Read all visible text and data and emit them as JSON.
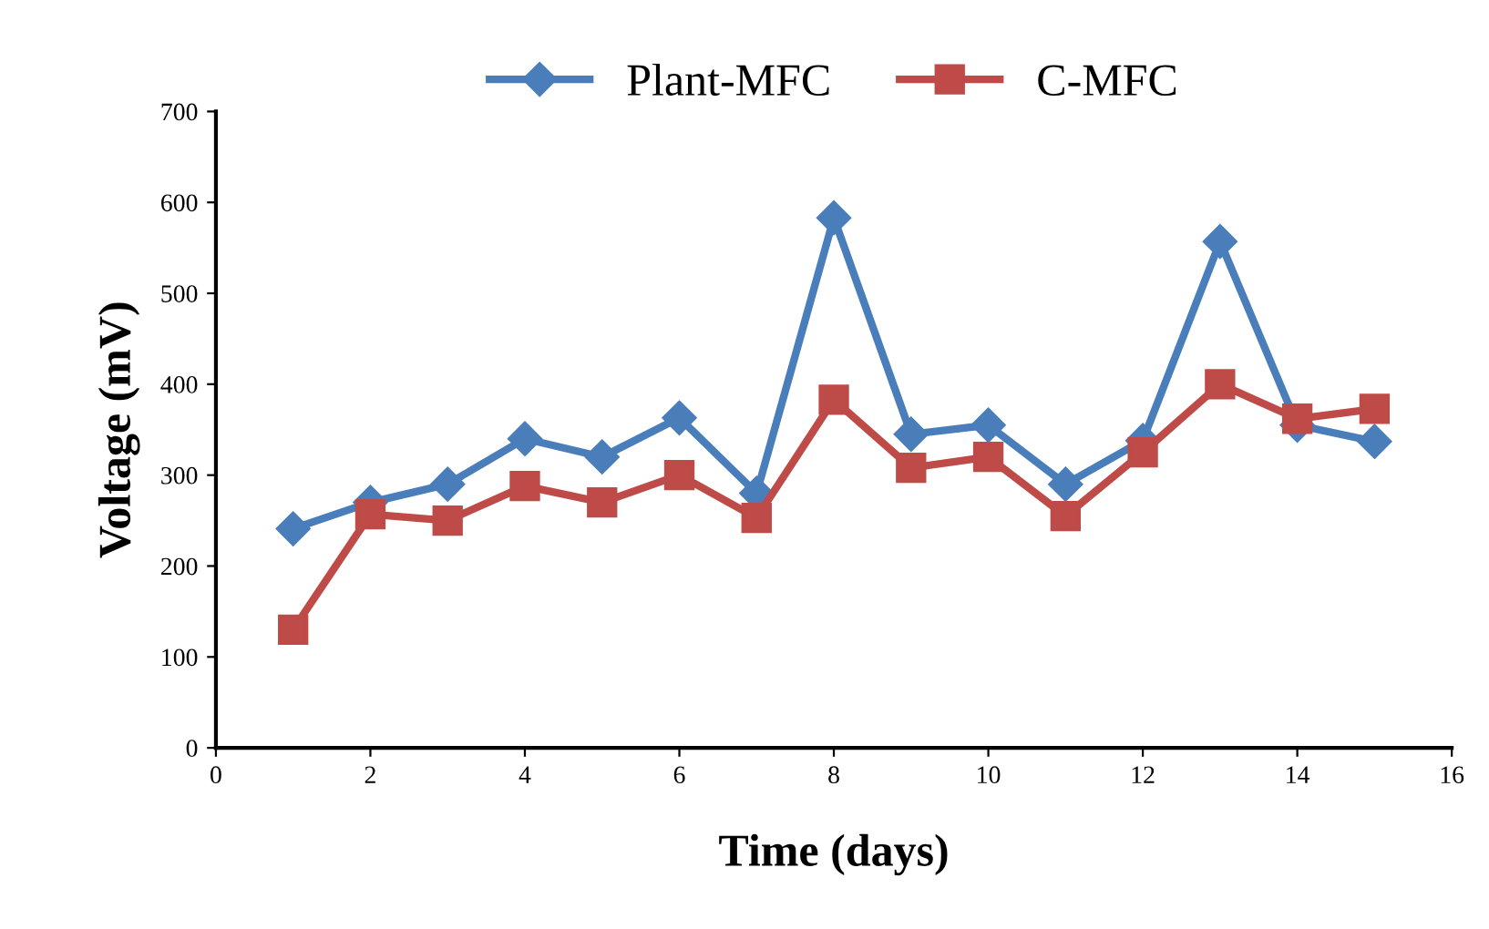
{
  "chart_data": {
    "type": "line",
    "xlabel": "Time (days)",
    "ylabel": "Voltage (mV)",
    "x": [
      1,
      2,
      3,
      4,
      5,
      6,
      7,
      8,
      9,
      10,
      11,
      12,
      13,
      14,
      15
    ],
    "series": [
      {
        "name": "Plant-MFC",
        "color": "#4a7ebb",
        "marker": "diamond",
        "values": [
          241,
          270,
          290,
          340,
          320,
          363,
          280,
          583,
          345,
          355,
          290,
          338,
          557,
          355,
          337
        ]
      },
      {
        "name": "C-MFC",
        "color": "#be4b48",
        "marker": "square",
        "values": [
          130,
          257,
          250,
          288,
          270,
          300,
          253,
          383,
          308,
          320,
          255,
          325,
          400,
          362,
          373
        ]
      }
    ],
    "xlim": [
      0,
      16
    ],
    "xticks": [
      0,
      2,
      4,
      6,
      8,
      10,
      12,
      14,
      16
    ],
    "ylim": [
      0,
      700
    ],
    "yticks": [
      0,
      100,
      200,
      300,
      400,
      500,
      600,
      700
    ],
    "grid": false,
    "legend": "top",
    "line_style": "solid"
  }
}
